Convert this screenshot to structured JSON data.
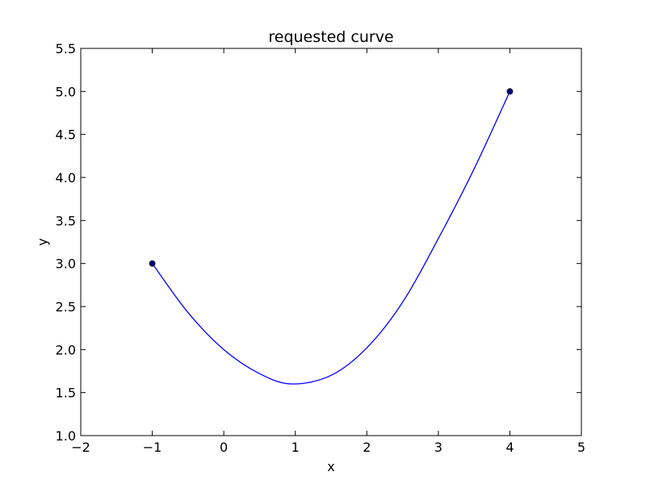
{
  "chart_data": {
    "type": "line",
    "title": "requested curve",
    "xlabel": "x",
    "ylabel": "y",
    "xlim": [
      -2,
      5
    ],
    "ylim": [
      1.0,
      5.5
    ],
    "xticks": [
      -2,
      -1,
      0,
      1,
      2,
      3,
      4,
      5
    ],
    "xtick_labels": [
      "−2",
      "−1",
      "0",
      "1",
      "2",
      "3",
      "4",
      "5"
    ],
    "yticks": [
      1.0,
      1.5,
      2.0,
      2.5,
      3.0,
      3.5,
      4.0,
      4.5,
      5.0,
      5.5
    ],
    "ytick_labels": [
      "1.0",
      "1.5",
      "2.0",
      "2.5",
      "3.0",
      "3.5",
      "4.0",
      "4.5",
      "5.0",
      "5.5"
    ],
    "grid": false,
    "series": [
      {
        "color": "#0000ff",
        "x": [
          -1.0,
          -0.5,
          0.0,
          0.5,
          0.95,
          1.5,
          2.0,
          2.5,
          3.0,
          3.5,
          4.0
        ],
        "y": [
          3.0,
          2.43,
          2.0,
          1.72,
          1.6,
          1.7,
          2.02,
          2.55,
          3.29,
          4.1,
          5.0
        ]
      }
    ],
    "points": [
      {
        "x": -1,
        "y": 3,
        "color": "#000080"
      },
      {
        "x": 4,
        "y": 5,
        "color": "#000080"
      }
    ]
  }
}
